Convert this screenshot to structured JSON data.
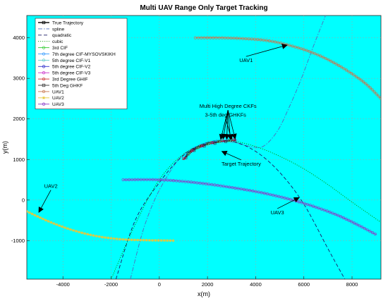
{
  "chart_data": {
    "type": "line",
    "title": "Multi UAV Range Only Target Tracking",
    "xlabel": "x(m)",
    "ylabel": "y(m)",
    "xlim": [
      -5500,
      9200
    ],
    "ylim": [
      -1950,
      4550
    ],
    "xticks": [
      -4000,
      -2000,
      0,
      2000,
      4000,
      6000,
      8000
    ],
    "yticks": [
      -1000,
      0,
      1000,
      2000,
      3000,
      4000
    ],
    "grid": true,
    "background_color": "#00ffff",
    "legend_position": "top-left",
    "legend": [
      {
        "label": "True Trajectory",
        "color": "#000000",
        "style": "solid",
        "marker": "square"
      },
      {
        "label": "spline",
        "color": "#4d6ebe",
        "style": "dashdot",
        "marker": "none"
      },
      {
        "label": "quadratic",
        "color": "#1a1a66",
        "style": "dash",
        "marker": "none"
      },
      {
        "label": "cubic",
        "color": "#009900",
        "style": "dot",
        "marker": "none"
      },
      {
        "label": "3rd CIF",
        "color": "#33cc33",
        "style": "solid",
        "marker": "circle"
      },
      {
        "label": "7th degree CIF-MYSOVSKIKH",
        "color": "#3399ff",
        "style": "solid",
        "marker": "circle"
      },
      {
        "label": "5th degree CIF-V1",
        "color": "#66cccc",
        "style": "solid",
        "marker": "circle"
      },
      {
        "label": "5th degree CIF-V2",
        "color": "#3333cc",
        "style": "solid",
        "marker": "circle"
      },
      {
        "label": "5th degree CIF-V3",
        "color": "#cc33cc",
        "style": "solid",
        "marker": "circle"
      },
      {
        "label": "3rd Degree GHIF",
        "color": "#cc3333",
        "style": "solid",
        "marker": "circle"
      },
      {
        "label": "5th Deg GHKF",
        "color": "#333333",
        "style": "solid",
        "marker": "square"
      },
      {
        "label": "UAV1",
        "color": "#c87850",
        "style": "solid",
        "marker": "circle"
      },
      {
        "label": "UAV2",
        "color": "#e6c83c",
        "style": "solid",
        "marker": "star"
      },
      {
        "label": "UAV3",
        "color": "#8a3cc8",
        "style": "solid",
        "marker": "circle"
      }
    ],
    "series": [
      {
        "name": "True Trajectory",
        "color": "#000000",
        "x": [
          1000,
          1200,
          1400,
          1700,
          2000,
          2300,
          2600,
          2900,
          3100
        ],
        "y": [
          1000,
          1150,
          1250,
          1330,
          1390,
          1430,
          1450,
          1460,
          1460
        ]
      },
      {
        "name": "spline",
        "color": "#4d6ebe",
        "x": [
          -1200,
          -700,
          -200,
          300,
          800,
          1300,
          1900,
          2500,
          3100,
          3700,
          4300,
          4900,
          5400,
          5900,
          6400,
          6900
        ],
        "y": [
          -1950,
          -800,
          0,
          560,
          1000,
          1250,
          1400,
          1440,
          1420,
          1330,
          1320,
          1700,
          2300,
          3000,
          3800,
          4550
        ]
      },
      {
        "name": "quadratic",
        "color": "#1a1a66",
        "x": [
          -1800,
          -1000,
          0,
          1000,
          2000,
          3000,
          4000,
          5000,
          6000,
          7000,
          7700
        ],
        "y": [
          -1950,
          -500,
          430,
          1100,
          1420,
          1450,
          1200,
          680,
          -100,
          -1200,
          -1950
        ]
      },
      {
        "name": "cubic",
        "color": "#009900",
        "x": [
          -2000,
          -1000,
          0,
          1000,
          2000,
          3000,
          4000,
          5000,
          6000,
          7000,
          8000,
          9200
        ],
        "y": [
          -1950,
          -600,
          500,
          1130,
          1400,
          1450,
          1320,
          1080,
          770,
          380,
          -50,
          -550
        ]
      },
      {
        "name": "UAV1",
        "color": "#c87850",
        "x": [
          1500,
          2500,
          3500,
          4500,
          5500,
          6500,
          7500,
          8500,
          9200
        ],
        "y": [
          4000,
          4000,
          3980,
          3930,
          3800,
          3600,
          3300,
          2900,
          2500
        ]
      },
      {
        "name": "UAV2",
        "color": "#e6c83c",
        "x": [
          -5500,
          -4500,
          -3500,
          -2500,
          -1500,
          -500,
          600
        ],
        "y": [
          -280,
          -550,
          -760,
          -900,
          -970,
          -990,
          -1000
        ]
      },
      {
        "name": "UAV3",
        "color": "#8a3cc8",
        "x": [
          -1500,
          0,
          1500,
          3000,
          4500,
          6000,
          7500,
          9000
        ],
        "y": [
          500,
          500,
          430,
          310,
          150,
          -80,
          -400,
          -850
        ]
      }
    ],
    "estimates": {
      "x": [
        1000,
        1250,
        1500,
        1750,
        2000,
        2250,
        2500,
        2750,
        3000,
        3200
      ],
      "y": [
        1000,
        1150,
        1260,
        1320,
        1380,
        1410,
        1440,
        1460,
        1470,
        1480
      ]
    },
    "annotations": [
      {
        "text": "UAV1",
        "x": 3600,
        "y": 3400,
        "arrow_to": [
          5300,
          3820
        ]
      },
      {
        "text": "Multi High Degree CKFs",
        "x": 2850,
        "y": 2270,
        "arrow_to": [
          2550,
          1500
        ]
      },
      {
        "text": "3-5th deg GHKFs",
        "x": 2750,
        "y": 2060,
        "arrow_to": [
          3000,
          1500
        ]
      },
      {
        "text": "Target Trajectory",
        "x": 3400,
        "y": 850,
        "arrow_to": [
          2600,
          1200
        ]
      },
      {
        "text": "UAV2",
        "x": -4500,
        "y": 300,
        "arrow_to": [
          -5000,
          -300
        ]
      },
      {
        "text": "UAV3",
        "x": 4900,
        "y": -350,
        "arrow_to": [
          5800,
          60
        ]
      }
    ]
  }
}
